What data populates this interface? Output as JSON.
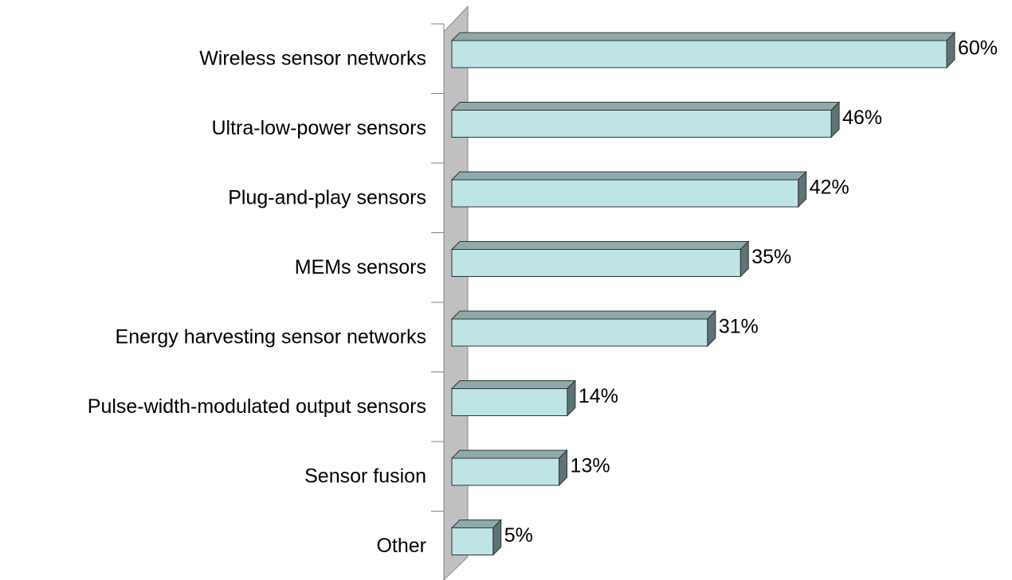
{
  "chart_data": {
    "type": "bar",
    "orientation": "horizontal",
    "categories": [
      "Wireless sensor networks",
      "Ultra-low-power sensors",
      "Plug-and-play sensors",
      "MEMs sensors",
      "Energy harvesting sensor networks",
      "Pulse-width-modulated output sensors",
      "Sensor fusion",
      "Other"
    ],
    "values": [
      60,
      46,
      42,
      35,
      31,
      14,
      13,
      5
    ],
    "value_labels": [
      "60%",
      "46%",
      "42%",
      "35%",
      "31%",
      "14%",
      "13%",
      "5%"
    ],
    "color": "#bfe4e6",
    "xlim": [
      0,
      60
    ]
  }
}
